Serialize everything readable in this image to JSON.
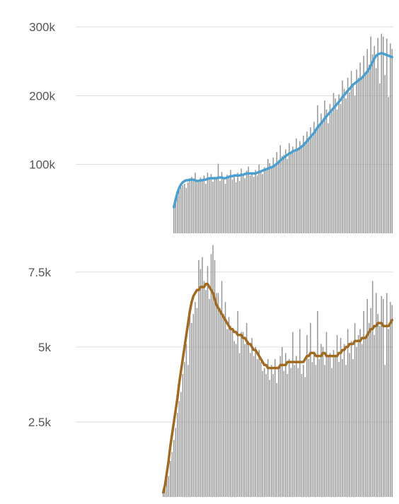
{
  "chart_data": [
    {
      "type": "bar",
      "title": "",
      "xlabel": "",
      "ylabel": "",
      "ylim": [
        0,
        300000
      ],
      "yticks": [
        {
          "value": 100000,
          "label": "100k"
        },
        {
          "value": 200000,
          "label": "200k"
        },
        {
          "value": 300000,
          "label": "300k"
        }
      ],
      "grid": true,
      "bar_color": "#999999",
      "line_color": "#4a9fd0",
      "series": [
        {
          "kind": "daily",
          "values": [
            38000,
            45000,
            55000,
            62000,
            67000,
            70000,
            72000,
            66000,
            74000,
            78000,
            82000,
            79000,
            88000,
            76000,
            74000,
            81000,
            77000,
            84000,
            72000,
            88000,
            79000,
            86000,
            75000,
            82000,
            80000,
            101000,
            76000,
            89000,
            78000,
            72000,
            85000,
            83000,
            92000,
            78000,
            84000,
            74000,
            88000,
            76000,
            94000,
            86000,
            80000,
            91000,
            97000,
            84000,
            88000,
            82000,
            92000,
            84000,
            100000,
            90000,
            86000,
            96000,
            93000,
            108000,
            102000,
            95000,
            110000,
            98000,
            118000,
            106000,
            128000,
            112000,
            114000,
            122000,
            108000,
            131000,
            116000,
            126000,
            118000,
            138000,
            124000,
            134000,
            126000,
            142000,
            130000,
            148000,
            136000,
            154000,
            140000,
            162000,
            150000,
            186000,
            158000,
            174000,
            166000,
            193000,
            180000,
            160000,
            188000,
            176000,
            204000,
            196000,
            180000,
            202000,
            188000,
            222000,
            210000,
            196000,
            226000,
            205000,
            236000,
            214000,
            200000,
            238000,
            226000,
            248000,
            228000,
            258000,
            234000,
            268000,
            245000,
            286000,
            260000,
            272000,
            240000,
            284000,
            218000,
            290000,
            286000,
            230000,
            283000,
            198000,
            276000,
            268000
          ]
        },
        {
          "kind": "moving_average",
          "values": [
            38000,
            49000,
            59000,
            66000,
            71000,
            74000,
            76000,
            77000,
            77000,
            78000,
            78000,
            78000,
            77000,
            76000,
            76000,
            77000,
            77000,
            78000,
            78000,
            79000,
            80000,
            80000,
            80000,
            80000,
            80000,
            81000,
            81000,
            81000,
            80000,
            80000,
            81000,
            82000,
            83000,
            83000,
            84000,
            84000,
            84000,
            84000,
            85000,
            85000,
            86000,
            87000,
            87000,
            87000,
            87000,
            87000,
            87000,
            88000,
            89000,
            90000,
            91000,
            92000,
            93000,
            94000,
            95000,
            96000,
            97000,
            99000,
            101000,
            103000,
            106000,
            108000,
            110000,
            112000,
            114000,
            116000,
            117000,
            119000,
            120000,
            121000,
            122000,
            124000,
            126000,
            128000,
            131000,
            134000,
            137000,
            140000,
            143000,
            146000,
            150000,
            154000,
            157000,
            160000,
            163000,
            167000,
            170000,
            173000,
            176000,
            179000,
            182000,
            185000,
            188000,
            191000,
            194000,
            198000,
            201000,
            204000,
            207000,
            210000,
            213000,
            216000,
            218000,
            220000,
            222000,
            224000,
            226000,
            229000,
            232000,
            235000,
            239000,
            244000,
            249000,
            254000,
            258000,
            260000,
            261000,
            262000,
            261000,
            260000,
            259000,
            258000,
            257000,
            256000
          ]
        }
      ]
    },
    {
      "type": "bar",
      "title": "",
      "xlabel": "",
      "ylabel": "",
      "ylim": [
        0,
        9500
      ],
      "yticks": [
        {
          "value": 2500,
          "label": "2.5k"
        },
        {
          "value": 5000,
          "label": "5k"
        },
        {
          "value": 7500,
          "label": "7.5k"
        }
      ],
      "grid": true,
      "bar_color": "#999999",
      "line_color": "#a06a20",
      "series": [
        {
          "kind": "daily",
          "values": [
            150,
            300,
            800,
            700,
            1200,
            1500,
            1900,
            2300,
            2800,
            3200,
            3500,
            4100,
            4500,
            5100,
            4400,
            6300,
            5800,
            6100,
            6500,
            6300,
            7900,
            7600,
            8000,
            7200,
            6900,
            7700,
            6600,
            8100,
            8400,
            7900,
            6800,
            6800,
            6300,
            7200,
            6100,
            6500,
            5600,
            6000,
            5700,
            5600,
            5200,
            5100,
            6200,
            4800,
            5500,
            5500,
            5100,
            5800,
            5200,
            4800,
            5300,
            4700,
            5000,
            4600,
            4900,
            4500,
            4200,
            4300,
            4100,
            4600,
            3900,
            4400,
            4100,
            4600,
            3800,
            4300,
            4700,
            5000,
            4200,
            4800,
            4100,
            4600,
            4300,
            5500,
            4400,
            4700,
            4300,
            5600,
            4100,
            4400,
            4000,
            5400,
            4600,
            5800,
            4500,
            4800,
            4400,
            6200,
            4600,
            5100,
            5000,
            4400,
            5500,
            4700,
            4800,
            4300,
            4900,
            4700,
            5400,
            4500,
            5300,
            4600,
            5100,
            4400,
            5600,
            4800,
            5200,
            4600,
            5800,
            5000,
            5400,
            5600,
            5100,
            6200,
            5300,
            6600,
            5800,
            6300,
            7200,
            5400,
            6800,
            6100,
            5700,
            6700,
            6600,
            4400,
            6800,
            5600,
            6500,
            6400
          ]
        },
        {
          "kind": "moving_average",
          "values": [
            150,
            400,
            800,
            1200,
            1700,
            2100,
            2500,
            2900,
            3300,
            3800,
            4200,
            4600,
            5000,
            5400,
            5800,
            6200,
            6500,
            6700,
            6800,
            6900,
            6900,
            7000,
            7000,
            7000,
            7100,
            7100,
            7000,
            6900,
            6800,
            6600,
            6400,
            6300,
            6200,
            6100,
            6000,
            5900,
            5800,
            5700,
            5600,
            5600,
            5500,
            5500,
            5400,
            5400,
            5400,
            5300,
            5300,
            5200,
            5100,
            5100,
            5000,
            4900,
            4900,
            4800,
            4700,
            4600,
            4500,
            4400,
            4400,
            4300,
            4300,
            4300,
            4300,
            4300,
            4300,
            4300,
            4400,
            4400,
            4400,
            4400,
            4500,
            4500,
            4500,
            4500,
            4500,
            4500,
            4500,
            4500,
            4500,
            4500,
            4600,
            4700,
            4700,
            4800,
            4800,
            4800,
            4700,
            4700,
            4700,
            4700,
            4800,
            4800,
            4700,
            4700,
            4700,
            4700,
            4700,
            4700,
            4700,
            4800,
            4800,
            4900,
            4900,
            5000,
            5000,
            5100,
            5100,
            5100,
            5200,
            5200,
            5200,
            5200,
            5300,
            5300,
            5300,
            5400,
            5500,
            5600,
            5600,
            5700,
            5700,
            5800,
            5800,
            5800,
            5700,
            5700,
            5700,
            5700,
            5800,
            5900
          ]
        }
      ]
    }
  ]
}
